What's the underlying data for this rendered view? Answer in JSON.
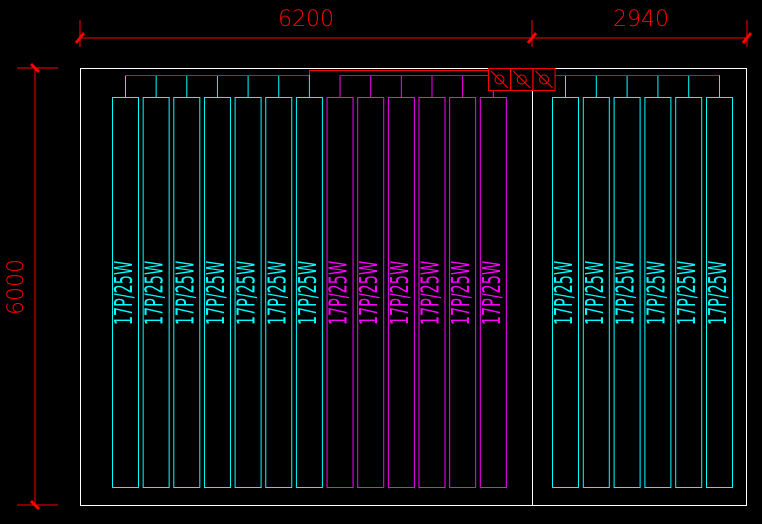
{
  "dimensions": {
    "top_left": "6200",
    "top_right": "2940",
    "left": "6000"
  },
  "colors": {
    "background": "#000000",
    "dimension": "#ff0000",
    "wall": "#ffffff",
    "group_a": "#00ffff",
    "group_b": "#ff00ff",
    "pipe": "#ff0000"
  },
  "valves": [
    {
      "icon": "valve-icon"
    },
    {
      "icon": "valve-icon"
    },
    {
      "icon": "valve-icon"
    }
  ],
  "left_room_panels": [
    {
      "label": "17P/25W",
      "group": "a"
    },
    {
      "label": "17P/25W",
      "group": "a"
    },
    {
      "label": "17P/25W",
      "group": "a"
    },
    {
      "label": "17P/25W",
      "group": "a"
    },
    {
      "label": "17P/25W",
      "group": "a"
    },
    {
      "label": "17P/25W",
      "group": "a"
    },
    {
      "label": "17P/25W",
      "group": "a"
    },
    {
      "label": "17P/25W",
      "group": "b"
    },
    {
      "label": "17P/25W",
      "group": "b"
    },
    {
      "label": "17P/25W",
      "group": "b"
    },
    {
      "label": "17P/25W",
      "group": "b"
    },
    {
      "label": "17P/25W",
      "group": "b"
    },
    {
      "label": "17P/25W",
      "group": "b"
    }
  ],
  "right_room_panels": [
    {
      "label": "17P/25W",
      "group": "a"
    },
    {
      "label": "17P/25W",
      "group": "a"
    },
    {
      "label": "17P/25W",
      "group": "a"
    },
    {
      "label": "17P/25W",
      "group": "a"
    },
    {
      "label": "17P/25W",
      "group": "a"
    },
    {
      "label": "17P/25W",
      "group": "a"
    }
  ]
}
